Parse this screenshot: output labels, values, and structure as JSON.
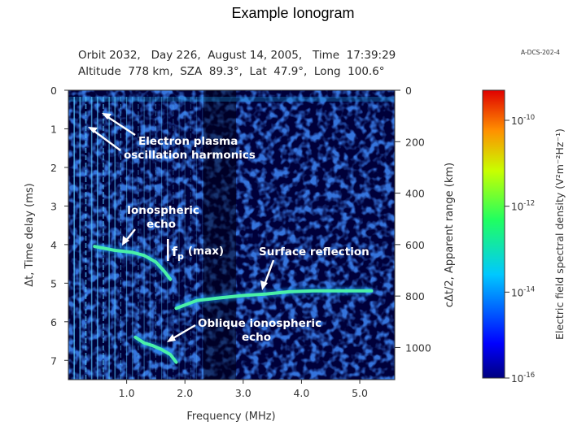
{
  "page_title": "Example Ionogram",
  "header": {
    "line1": "Orbit 2032,   Day 226,  August 14, 2005,   Time  17:39:29",
    "line2": "Altitude  778 km,  SZA  89.3°,  Lat  47.9°,  Long  100.6°",
    "code": "A-DCS-202-4"
  },
  "annotations": {
    "plasma_line1": "Electron plasma",
    "plasma_line2": "oscillation harmonics",
    "iono_line1": "Ionospheric",
    "iono_line2": "echo",
    "fp": "f",
    "fp_sub": "p",
    "fp_rest": "(max)",
    "surface": "Surface reflection",
    "oblique_line1": "Oblique ionospheric",
    "oblique_line2": "echo"
  },
  "colors": {
    "background": "#00003a",
    "trace": "#4af0a8",
    "annotation": "#ffffff"
  },
  "chart_data": {
    "type": "heatmap",
    "xlabel": "Frequency (MHz)",
    "ylabel": "Δt, Time delay (ms)",
    "y2label": "cΔt/2, Apparent range (km)",
    "colorbar_label": "Electric field spectral density (V²m⁻²Hz⁻¹)",
    "xlim": [
      0.0,
      5.6
    ],
    "ylim": [
      0,
      7.5
    ],
    "y2lim": [
      0,
      1125
    ],
    "x_ticks": [
      {
        "v": 1.0,
        "label": "1.0"
      },
      {
        "v": 2.0,
        "label": "2.0"
      },
      {
        "v": 3.0,
        "label": "3.0"
      },
      {
        "v": 4.0,
        "label": "4.0"
      },
      {
        "v": 5.0,
        "label": "5.0"
      }
    ],
    "y_ticks": [
      {
        "v": 0,
        "label": "0"
      },
      {
        "v": 1,
        "label": "1"
      },
      {
        "v": 2,
        "label": "2"
      },
      {
        "v": 3,
        "label": "3"
      },
      {
        "v": 4,
        "label": "4"
      },
      {
        "v": 5,
        "label": "5"
      },
      {
        "v": 6,
        "label": "6"
      },
      {
        "v": 7,
        "label": "7"
      }
    ],
    "y2_ticks": [
      {
        "v": 0,
        "label": "0"
      },
      {
        "v": 200,
        "label": "200"
      },
      {
        "v": 400,
        "label": "400"
      },
      {
        "v": 600,
        "label": "600"
      },
      {
        "v": 800,
        "label": "800"
      },
      {
        "v": 1000,
        "label": "1000"
      }
    ],
    "colorbar_ticks": [
      {
        "exp": -10,
        "base": "10",
        "sup": "-10"
      },
      {
        "exp": -12,
        "base": "10",
        "sup": "-12"
      },
      {
        "exp": -14,
        "base": "10",
        "sup": "-14"
      },
      {
        "exp": -16,
        "base": "10",
        "sup": "-16"
      }
    ],
    "colorbar_range": [
      -16,
      -9.3
    ],
    "plasma_harmonics_mhz": [
      0.1,
      0.2,
      0.3,
      0.4,
      0.5,
      0.6,
      0.7,
      0.8,
      0.9,
      1.0,
      1.1,
      1.2,
      1.3,
      1.4,
      1.5,
      1.6,
      1.7,
      1.8,
      1.9,
      2.0,
      2.1,
      2.2,
      2.3
    ],
    "series": [
      {
        "name": "Ionospheric echo",
        "x": [
          0.45,
          0.8,
          1.1,
          1.3,
          1.5,
          1.65,
          1.75
        ],
        "y": [
          4.05,
          4.15,
          4.2,
          4.28,
          4.45,
          4.7,
          4.9
        ]
      },
      {
        "name": "Surface reflection",
        "x": [
          1.85,
          2.2,
          2.6,
          3.0,
          3.4,
          3.8,
          4.2,
          4.6,
          4.9,
          5.2
        ],
        "y": [
          5.65,
          5.45,
          5.38,
          5.32,
          5.28,
          5.22,
          5.2,
          5.2,
          5.2,
          5.2
        ]
      },
      {
        "name": "Oblique ionospheric echo",
        "x": [
          1.15,
          1.3,
          1.45,
          1.6,
          1.75,
          1.85
        ],
        "y": [
          6.4,
          6.55,
          6.62,
          6.72,
          6.85,
          7.05
        ]
      }
    ]
  }
}
